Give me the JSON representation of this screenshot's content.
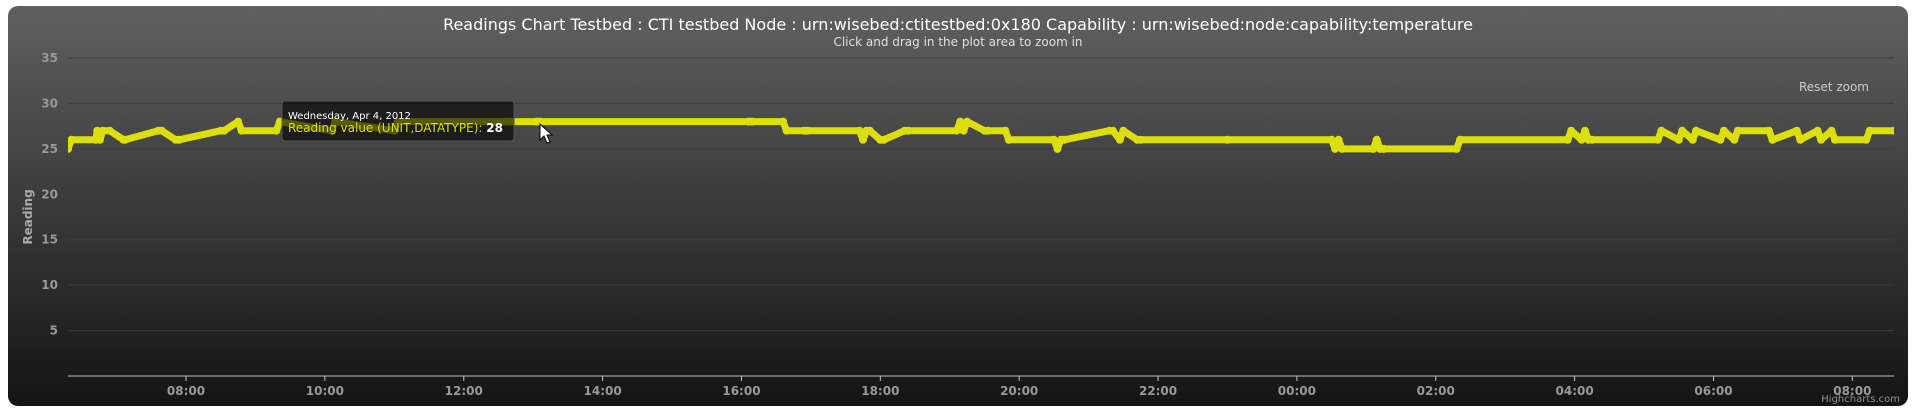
{
  "chart_data": {
    "type": "line",
    "title": "Readings Chart Testbed : CTI testbed Node : urn:wisebed:ctitestbed:0x180 Capability : urn:wisebed:node:capability:temperature",
    "subtitle": "Click and drag in the plot area to zoom in",
    "ylabel": "Reading",
    "xlabel": "",
    "ylim": [
      0,
      35
    ],
    "yticks": [
      "5",
      "10",
      "15",
      "20",
      "25",
      "30",
      "35"
    ],
    "xlim_hours": [
      6.3,
      32.6
    ],
    "xticks": [
      {
        "h": 8,
        "label": "08:00"
      },
      {
        "h": 10,
        "label": "10:00"
      },
      {
        "h": 12,
        "label": "12:00"
      },
      {
        "h": 14,
        "label": "14:00"
      },
      {
        "h": 16,
        "label": "16:00"
      },
      {
        "h": 18,
        "label": "18:00"
      },
      {
        "h": 20,
        "label": "20:00"
      },
      {
        "h": 22,
        "label": "22:00"
      },
      {
        "h": 24,
        "label": "00:00"
      },
      {
        "h": 26,
        "label": "02:00"
      },
      {
        "h": 28,
        "label": "04:00"
      },
      {
        "h": 30,
        "label": "06:00"
      },
      {
        "h": 32,
        "label": "08:00"
      }
    ],
    "grid": true,
    "legend": "none",
    "series": [
      {
        "name": "Reading value (UNIT,DATATYPE)",
        "color": "#DDDF0D",
        "x": [
          6.3,
          6.35,
          6.7,
          6.72,
          6.76,
          6.8,
          6.9,
          7.1,
          7.12,
          7.6,
          7.65,
          7.85,
          7.9,
          8.5,
          8.55,
          8.75,
          8.8,
          9.3,
          9.35,
          10.1,
          10.15,
          11.0,
          11.05,
          12.6,
          12.65,
          13.05,
          13.1,
          16.1,
          16.15,
          16.6,
          16.65,
          16.9,
          16.95,
          17.7,
          17.75,
          17.8,
          17.85,
          18.0,
          18.05,
          18.35,
          18.4,
          19.1,
          19.15,
          19.2,
          19.25,
          19.5,
          19.55,
          19.8,
          19.85,
          20.5,
          20.55,
          20.6,
          20.65,
          21.3,
          21.35,
          21.45,
          21.5,
          21.7,
          21.75,
          23.0,
          24.5,
          24.55,
          24.6,
          24.65,
          25.1,
          25.15,
          25.2,
          25.25,
          26.3,
          26.35,
          27.9,
          27.95,
          28.1,
          28.15,
          28.2,
          28.25,
          29.2,
          29.25,
          29.5,
          29.55,
          29.7,
          29.75,
          30.1,
          30.15,
          30.3,
          30.35,
          30.8,
          30.85,
          31.2,
          31.25,
          31.5,
          31.55,
          31.7,
          31.75,
          32.2,
          32.25,
          32.6
        ],
        "y": [
          25,
          26,
          26,
          27,
          26,
          27,
          27,
          26,
          26,
          27,
          27,
          26,
          26,
          27,
          27,
          28,
          27,
          27,
          28,
          27,
          28,
          27,
          28,
          28,
          28,
          28,
          28,
          28,
          28,
          28,
          27,
          27,
          27,
          27,
          26,
          27,
          27,
          26,
          26,
          27,
          27,
          27,
          28,
          27,
          28,
          27,
          27,
          27,
          26,
          26,
          25,
          26,
          26,
          27,
          27,
          26,
          27,
          26,
          26,
          26,
          26,
          25,
          26,
          25,
          25,
          26,
          25,
          25,
          25,
          26,
          26,
          27,
          26,
          27,
          26,
          26,
          26,
          27,
          26,
          27,
          26,
          27,
          26,
          27,
          26,
          27,
          27,
          26,
          27,
          26,
          27,
          26,
          27,
          26,
          26,
          27,
          27
        ]
      }
    ],
    "tooltip": {
      "date": "Wednesday, Apr 4, 2012",
      "series": "Reading value (UNIT,DATATYPE)",
      "separator": ": ",
      "value": "28"
    },
    "reset_zoom": "Reset zoom",
    "credits": "Highcharts.com"
  },
  "colors": {
    "background_top": "#606060",
    "background_bottom": "#141414",
    "grid": "#3c3c3c",
    "series": "#DDDF0D"
  }
}
